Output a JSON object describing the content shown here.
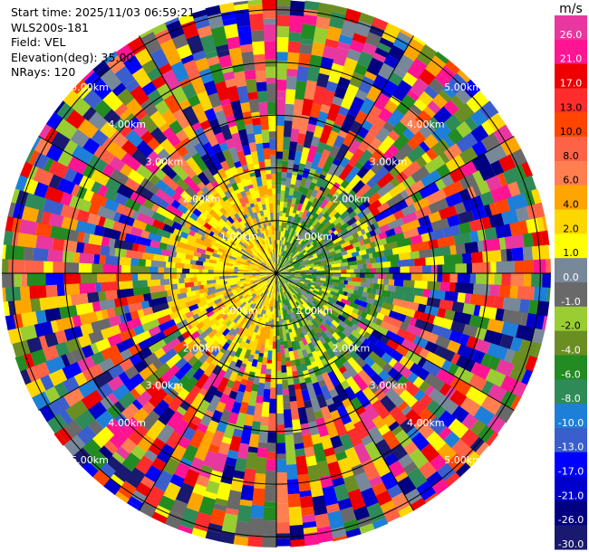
{
  "info": {
    "start_time": "Start time: 2025/11/03 06:59:21",
    "station": "WLS200s-181",
    "field": "Field: VEL",
    "elevation": "Elevation(deg): 35.00",
    "nrays": "NRays: 120"
  },
  "chart_data": {
    "type": "ppi",
    "field": "VEL",
    "elevation_deg": 35.0,
    "n_rays": 120,
    "range_rings_km": [
      1.0,
      2.0,
      3.0,
      4.0,
      5.0
    ],
    "range_ring_labels": [
      "1.00km",
      "2.00km",
      "3.00km",
      "4.00km",
      "5.00km"
    ],
    "rays_drawn_deg": [
      0,
      30,
      60,
      90,
      120,
      150,
      180,
      210,
      240,
      270,
      300,
      330
    ],
    "colorbar": {
      "unit": "m/s",
      "ticks": [
        "26.0",
        "21.0",
        "17.0",
        "13.0",
        "10.0",
        "8.0",
        "6.0",
        "4.0",
        "2.0",
        "1.0",
        "0.0",
        "-1.0",
        "-2.0",
        "-4.0",
        "-6.0",
        "-8.0",
        "-10.0",
        "-13.0",
        "-17.0",
        "-21.0",
        "-26.0",
        "-30.0"
      ],
      "colors": [
        "#e8389f",
        "#ff1493",
        "#ee0000",
        "#ff2d2d",
        "#ff4500",
        "#ff6347",
        "#ff7f50",
        "#ffa500",
        "#ffd700",
        "#ffff00",
        "#778899",
        "#696969",
        "#9acd32",
        "#6b8e23",
        "#228b22",
        "#2e8b57",
        "#1e7fd8",
        "#3a5fcd",
        "#0000ff",
        "#0000cd",
        "#000080",
        "#191970"
      ]
    }
  }
}
